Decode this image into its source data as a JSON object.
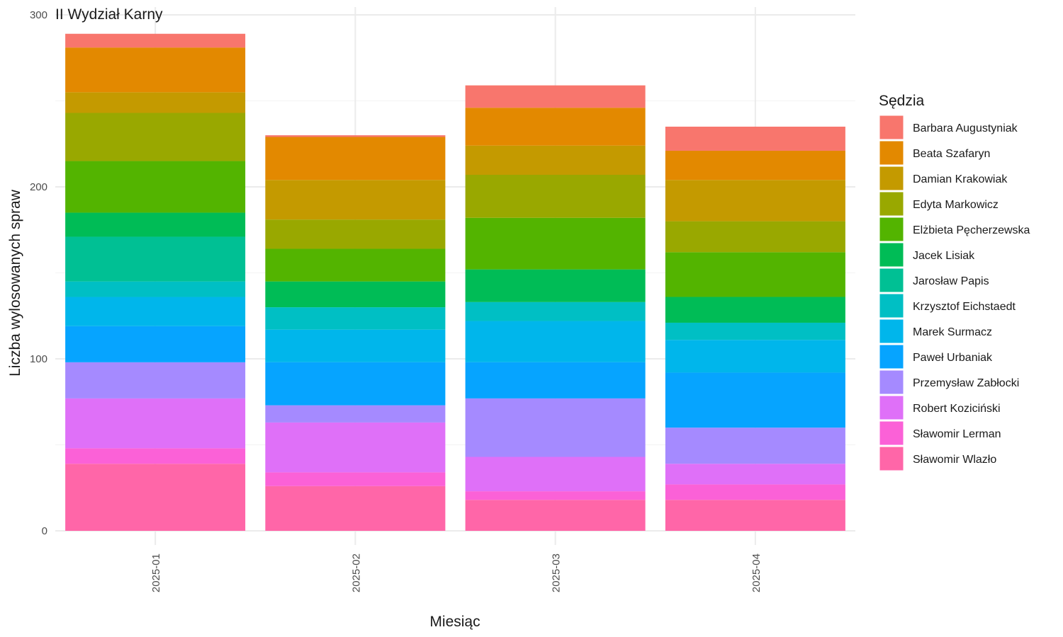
{
  "chart_data": {
    "type": "bar",
    "stacked": true,
    "title": "II Wydział Karny",
    "xlabel": "Miesiąc",
    "ylabel": "Liczba wylosowanych spraw",
    "ylim": [
      0,
      300
    ],
    "yticks": [
      0,
      100,
      200,
      300
    ],
    "grid": true,
    "legend_title": "Sędzia",
    "legend_position": "right",
    "categories": [
      "2025-01",
      "2025-02",
      "2025-03",
      "2025-04"
    ],
    "series": [
      {
        "name": "Barbara Augustyniak",
        "color": "#F8766D",
        "values": [
          8,
          1,
          13,
          14
        ]
      },
      {
        "name": "Beata Szafaryn",
        "color": "#E38900",
        "values": [
          26,
          25,
          22,
          17
        ]
      },
      {
        "name": "Damian Krakowiak",
        "color": "#C49A00",
        "values": [
          12,
          23,
          17,
          24
        ]
      },
      {
        "name": "Edyta Markowicz",
        "color": "#99A800",
        "values": [
          28,
          17,
          25,
          18
        ]
      },
      {
        "name": "Elżbieta Pęcherzewska",
        "color": "#53B400",
        "values": [
          30,
          19,
          30,
          26
        ]
      },
      {
        "name": "Jacek Lisiak",
        "color": "#00BC56",
        "values": [
          14,
          15,
          19,
          15
        ]
      },
      {
        "name": "Jarosław Papis",
        "color": "#00C094",
        "values": [
          26,
          0,
          0,
          0
        ]
      },
      {
        "name": "Krzysztof Eichstaedt",
        "color": "#00BFC4",
        "values": [
          9,
          13,
          11,
          10
        ]
      },
      {
        "name": "Marek Surmacz",
        "color": "#00B6EB",
        "values": [
          17,
          19,
          24,
          19
        ]
      },
      {
        "name": "Paweł Urbaniak",
        "color": "#06A4FF",
        "values": [
          21,
          25,
          21,
          32
        ]
      },
      {
        "name": "Przemysław Zabłocki",
        "color": "#A58AFF",
        "values": [
          21,
          10,
          34,
          21
        ]
      },
      {
        "name": "Robert Koziciński",
        "color": "#DF70F8",
        "values": [
          29,
          29,
          20,
          12
        ]
      },
      {
        "name": "Sławomir Lerman",
        "color": "#FB61D7",
        "values": [
          9,
          8,
          5,
          9
        ]
      },
      {
        "name": "Sławomir Wlazło",
        "color": "#FF66A8",
        "values": [
          39,
          26,
          18,
          18
        ]
      }
    ]
  }
}
